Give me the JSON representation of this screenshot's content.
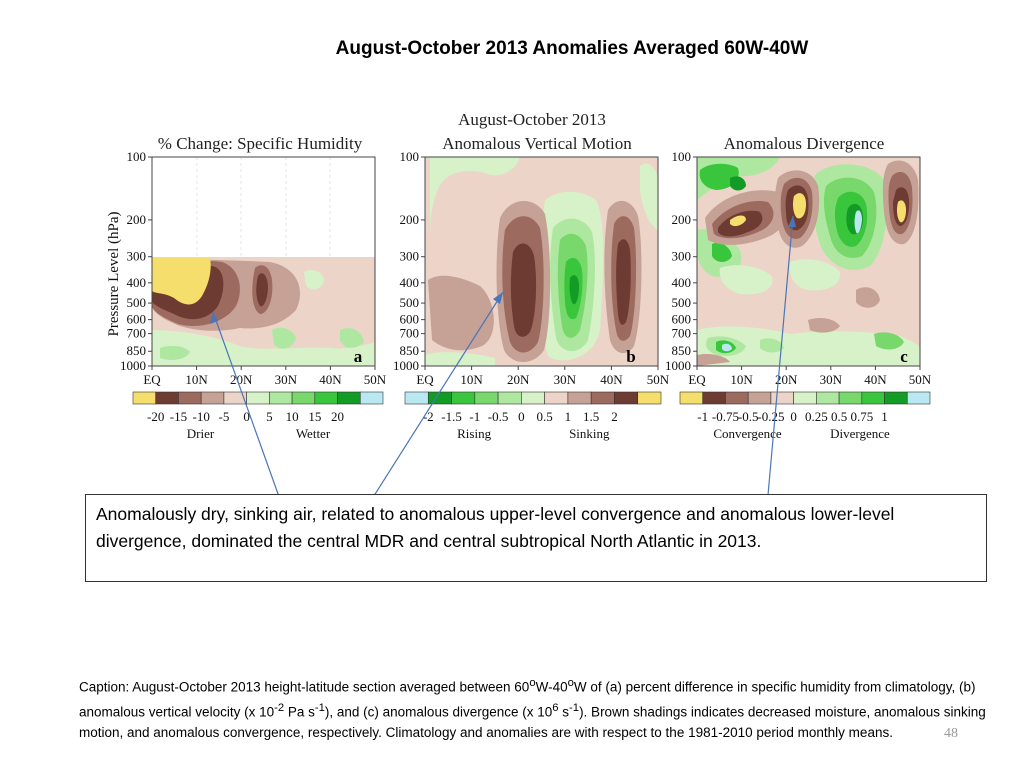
{
  "slide": {
    "title": "August-October 2013 Anomalies Averaged 60W-40W",
    "callout": "Anomalously dry, sinking air, related to anomalous upper-level convergence and anomalous lower-level divergence,  dominated the central MDR  and central subtropical North Atlantic in 2013.",
    "caption": {
      "part1": "Caption: August-October 2013 height-latitude section averaged between 60",
      "sup1": "o",
      "part2": "W-40",
      "sup2": "o",
      "part3": "W of (a) percent difference in specific humidity from climatology, (b) anomalous vertical velocity (x 10",
      "sup3": "-2",
      "part4": " Pa s",
      "sup4": "-1",
      "part5": "), and (c) anomalous divergence (x 10",
      "sup5": "6",
      "part6": " s",
      "sup6": "-1",
      "part7": "). Brown shadings indicates decreased moisture, anomalous sinking motion, and anomalous convergence, respectively. Climatology and anomalies are with respect to the 1981-2010 period monthly means."
    },
    "page_number": "48"
  },
  "chart_data": [
    {
      "type": "heatmap",
      "panel_label": "a",
      "title": "% Change: Specific Humidity",
      "ylabel": "Pressure Level (hPa)",
      "yticks": [
        "100",
        "200",
        "300",
        "400",
        "500",
        "600",
        "700",
        "850",
        "1000"
      ],
      "xticks": [
        "EQ",
        "10N",
        "20N",
        "30N",
        "40N",
        "50N"
      ],
      "xlim": [
        0,
        50
      ],
      "ylim": [
        1000,
        100
      ],
      "yscale": "log",
      "data_top_hPa": 300,
      "colorbar": {
        "labels": [
          "-20",
          "-15",
          "-10",
          "-5",
          "0",
          "5",
          "10",
          "15",
          "20"
        ],
        "colors": [
          "#f6de6c",
          "#6e3b33",
          "#9c6a5e",
          "#c6a195",
          "#ecd4c8",
          "#d7f2c8",
          "#aee8a0",
          "#79d86c",
          "#39c63d",
          "#139c25",
          "#b9e8f2"
        ],
        "negative_label": "Drier",
        "positive_label": "Wetter"
      }
    },
    {
      "type": "heatmap",
      "panel_label": "b",
      "title": "August-October 2013",
      "subtitle": "Anomalous Vertical Motion",
      "yticks": [
        "100",
        "200",
        "300",
        "400",
        "500",
        "600",
        "700",
        "850",
        "1000"
      ],
      "xticks": [
        "EQ",
        "10N",
        "20N",
        "30N",
        "40N",
        "50N"
      ],
      "xlim": [
        0,
        50
      ],
      "ylim": [
        1000,
        100
      ],
      "yscale": "log",
      "colorbar": {
        "labels": [
          "-2",
          "-1.5",
          "-1",
          "-0.5",
          "0",
          "0.5",
          "1",
          "1.5",
          "2"
        ],
        "colors": [
          "#b9e8f2",
          "#139c25",
          "#39c63d",
          "#79d86c",
          "#aee8a0",
          "#d7f2c8",
          "#ecd4c8",
          "#c6a195",
          "#9c6a5e",
          "#6e3b33",
          "#f6de6c"
        ],
        "negative_label": "Rising",
        "positive_label": "Sinking"
      }
    },
    {
      "type": "heatmap",
      "panel_label": "c",
      "title": "Anomalous Divergence",
      "yticks": [
        "100",
        "200",
        "300",
        "400",
        "500",
        "600",
        "700",
        "850",
        "1000"
      ],
      "xticks": [
        "EQ",
        "10N",
        "20N",
        "30N",
        "40N",
        "50N"
      ],
      "xlim": [
        0,
        50
      ],
      "ylim": [
        1000,
        100
      ],
      "yscale": "log",
      "colorbar": {
        "labels": [
          "-1",
          "-0.75",
          "-0.5",
          "-0.25",
          "0",
          "0.25",
          "0.5",
          "0.75",
          "1"
        ],
        "colors": [
          "#f6de6c",
          "#6e3b33",
          "#9c6a5e",
          "#c6a195",
          "#ecd4c8",
          "#d7f2c8",
          "#aee8a0",
          "#79d86c",
          "#39c63d",
          "#139c25",
          "#b9e8f2"
        ],
        "negative_label": "Convergence",
        "positive_label": "Divergence"
      }
    }
  ],
  "arrow_color": "#4a76b8"
}
